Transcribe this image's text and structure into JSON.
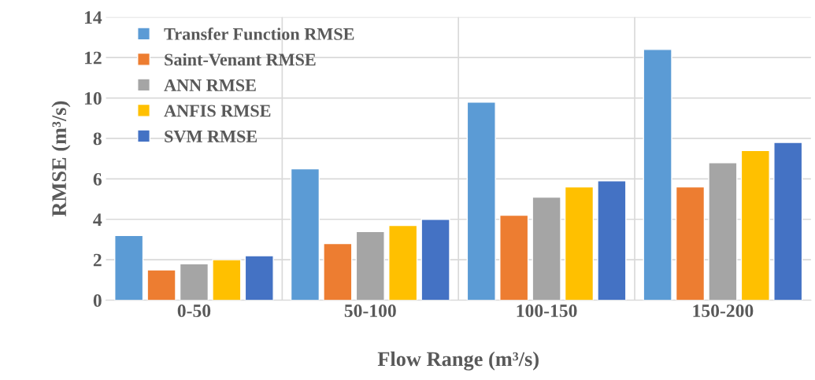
{
  "chart_data": {
    "type": "bar",
    "xlabel": "Flow Range (m³/s)",
    "ylabel": "RMSE (m³/s)",
    "categories": [
      "0-50",
      "50-100",
      "100-150",
      "150-200"
    ],
    "series": [
      {
        "name": "Transfer Function RMSE",
        "color": "#5b9bd5",
        "values": [
          3.2,
          6.5,
          9.8,
          12.4
        ]
      },
      {
        "name": "Saint-Venant RMSE",
        "color": "#ed7d31",
        "values": [
          1.5,
          2.8,
          4.2,
          5.6
        ]
      },
      {
        "name": "ANN RMSE",
        "color": "#a5a5a5",
        "values": [
          1.8,
          3.4,
          5.1,
          6.8
        ]
      },
      {
        "name": "ANFIS RMSE",
        "color": "#ffc000",
        "values": [
          2.0,
          3.7,
          5.6,
          7.4
        ]
      },
      {
        "name": "SVM RMSE",
        "color": "#4472c4",
        "values": [
          2.2,
          4.0,
          5.9,
          7.8
        ]
      }
    ],
    "ylim": [
      0,
      14
    ],
    "yticks": [
      0,
      2,
      4,
      6,
      8,
      10,
      12,
      14
    ],
    "grid": true,
    "legend": "top left"
  }
}
